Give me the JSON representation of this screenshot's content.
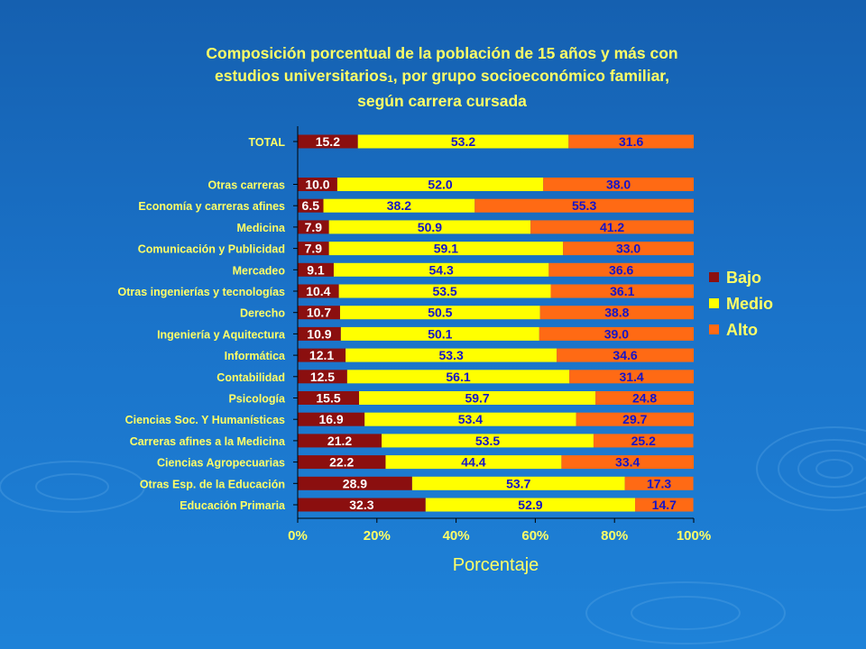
{
  "title_line1": "Composición porcentual de la población de 15 años y más con",
  "title_line2a": "estudios universitarios",
  "title_footnote": "1",
  "title_line2b": ", por grupo socioeconómico familiar,",
  "title_line3": "según carrera cursada",
  "chart_data": {
    "type": "bar",
    "orientation": "horizontal",
    "stacked": "percent",
    "xlabel": "Porcentaje",
    "xlim": [
      0,
      100
    ],
    "x_ticks": [
      "0%",
      "20%",
      "40%",
      "60%",
      "80%",
      "100%"
    ],
    "legend_position": "right",
    "categories": [
      "TOTAL",
      "Otras carreras",
      "Economía y carreras afines",
      "Medicina",
      "Comunicación y Publicidad",
      "Mercadeo",
      "Otras ingenierías y tecnologías",
      "Derecho",
      "Ingeniería y Aquitectura",
      "Informática",
      "Contabilidad",
      "Psicología",
      "Ciencias Soc. Y Humanísticas",
      "Carreras afines a la Medicina",
      "Ciencias Agropecuarias",
      "Otras Esp. de la Educación",
      "Educación Primaria"
    ],
    "series": [
      {
        "name": "Bajo",
        "color": "#8b0f0f",
        "label_color": "#ffffff",
        "values": [
          15.2,
          10.0,
          6.5,
          7.9,
          7.9,
          9.1,
          10.4,
          10.7,
          10.9,
          12.1,
          12.5,
          15.5,
          16.9,
          21.2,
          22.2,
          28.9,
          32.3
        ],
        "labels": [
          "15.2",
          "10.0",
          "6.5",
          "7.9",
          "7.9",
          "9.1",
          "10.4",
          "10.7",
          "10.9",
          "12.1",
          "12.5",
          "15.5",
          "16.9",
          "21.2",
          "22.2",
          "28.9",
          "32.3"
        ]
      },
      {
        "name": "Medio",
        "color": "#ffff00",
        "label_color": "#1414c8",
        "values": [
          53.2,
          52.0,
          38.2,
          50.9,
          59.1,
          54.3,
          53.5,
          50.5,
          50.1,
          53.3,
          56.1,
          59.7,
          53.4,
          53.5,
          44.4,
          53.7,
          52.9
        ],
        "labels": [
          "53.2",
          "52.0",
          "38.2",
          "50.9",
          "59.1",
          "54.3",
          "53.5",
          "50.5",
          "50.1",
          "53.3",
          "56.1",
          "59.7",
          "53.4",
          "53.5",
          "44.4",
          "53.7",
          "52.9"
        ]
      },
      {
        "name": "Alto",
        "color": "#ff6a14",
        "label_color": "#1414c8",
        "values": [
          31.6,
          38.0,
          55.3,
          41.2,
          33.0,
          36.6,
          36.1,
          38.8,
          39.0,
          34.6,
          31.4,
          24.8,
          29.7,
          25.2,
          33.4,
          17.3,
          14.7
        ],
        "labels": [
          "31.6",
          "38.0",
          "55.3",
          "41.2",
          "33.0",
          "36.6",
          "36.1",
          "38.8",
          "39.0",
          "34.6",
          "31.4",
          "24.8",
          "29.7",
          "25.2",
          "33.4",
          "17.3",
          "14.7"
        ]
      }
    ]
  }
}
